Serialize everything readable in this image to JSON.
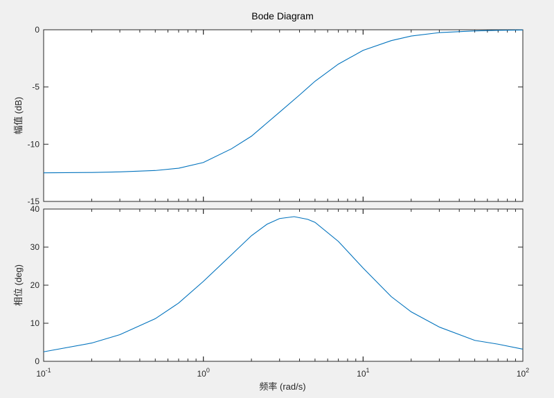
{
  "chart_data": {
    "type": "line",
    "title": "Bode Diagram",
    "xlabel": "频率  (rad/s)",
    "xscale": "log",
    "xlim": [
      0.1,
      100
    ],
    "x_ticks": [
      {
        "base": "10",
        "exp": "-1"
      },
      {
        "base": "10",
        "exp": "0"
      },
      {
        "base": "10",
        "exp": "1"
      },
      {
        "base": "10",
        "exp": "2"
      }
    ],
    "grid": false,
    "line_color": "#0072bd",
    "panels": [
      {
        "id": "magnitude",
        "ylabel": "幅值 (dB)",
        "ylim": [
          -15,
          0
        ],
        "yticks": [
          0,
          -5,
          -10,
          -15
        ],
        "x": [
          0.1,
          0.2,
          0.3,
          0.5,
          0.7,
          1.0,
          1.5,
          2.0,
          3.0,
          4.0,
          5.0,
          7.0,
          10,
          15,
          20,
          30,
          50,
          70,
          100
        ],
        "y": [
          -12.5,
          -12.47,
          -12.42,
          -12.3,
          -12.1,
          -11.6,
          -10.4,
          -9.3,
          -7.2,
          -5.7,
          -4.5,
          -3.0,
          -1.8,
          -0.95,
          -0.55,
          -0.25,
          -0.1,
          -0.05,
          -0.02
        ]
      },
      {
        "id": "phase",
        "ylabel": "相位 (deg)",
        "ylim": [
          0,
          40
        ],
        "yticks": [
          0,
          10,
          20,
          30,
          40
        ],
        "x": [
          0.1,
          0.2,
          0.3,
          0.5,
          0.7,
          1.0,
          1.5,
          2.0,
          2.5,
          3.0,
          3.7,
          4.5,
          5.0,
          7.0,
          10,
          15,
          20,
          30,
          50,
          70,
          100
        ],
        "y": [
          2.5,
          4.8,
          7.0,
          11.2,
          15.3,
          21.0,
          28.0,
          33.0,
          36.0,
          37.5,
          38.0,
          37.3,
          36.5,
          31.5,
          24.5,
          17.0,
          13.0,
          9.0,
          5.5,
          4.5,
          3.2
        ]
      }
    ]
  }
}
